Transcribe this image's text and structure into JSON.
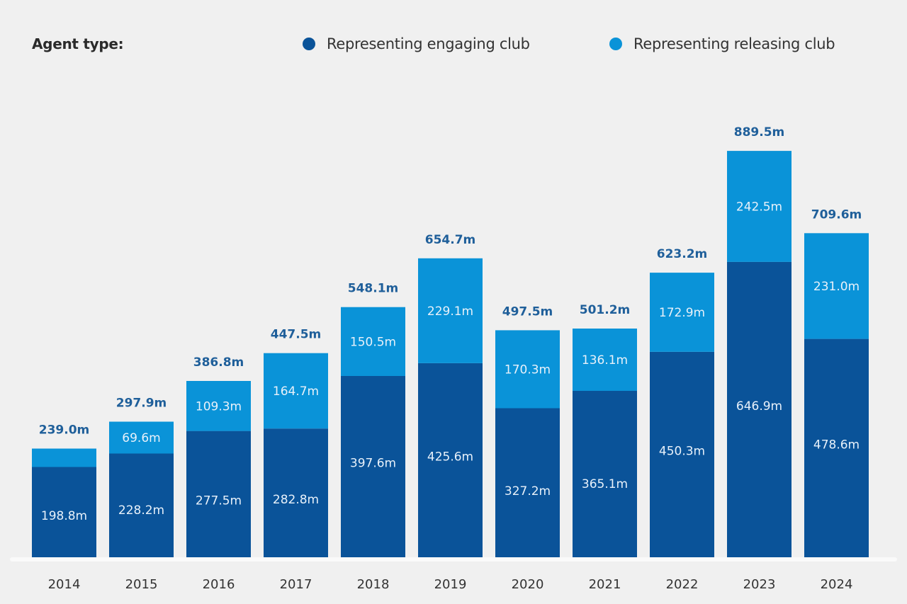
{
  "legend": {
    "title": "Agent type:",
    "items": [
      {
        "label": "Representing engaging club",
        "color": "#0a5399"
      },
      {
        "label": "Representing releasing club",
        "color": "#0a93d8"
      }
    ]
  },
  "chart_data": {
    "type": "bar",
    "stacked": true,
    "title": "",
    "xlabel": "",
    "ylabel": "",
    "unit_suffix": "m",
    "categories": [
      "2014",
      "2015",
      "2016",
      "2017",
      "2018",
      "2019",
      "2020",
      "2021",
      "2022",
      "2023",
      "2024"
    ],
    "series": [
      {
        "name": "Representing engaging club",
        "color": "#0a5399",
        "values": [
          198.8,
          228.2,
          277.5,
          282.8,
          397.6,
          425.6,
          327.2,
          365.1,
          450.3,
          646.9,
          478.6
        ],
        "labels": [
          "198.8m",
          "228.2m",
          "277.5m",
          "282.8m",
          "397.6m",
          "425.6m",
          "327.2m",
          "365.1m",
          "450.3m",
          "646.9m",
          "478.6m"
        ]
      },
      {
        "name": "Representing releasing club",
        "color": "#0a93d8",
        "values": [
          40.2,
          69.6,
          109.3,
          164.7,
          150.5,
          229.1,
          170.3,
          136.1,
          172.9,
          242.5,
          231.0
        ],
        "labels": [
          "",
          "69.6m",
          "109.3m",
          "164.7m",
          "150.5m",
          "229.1m",
          "170.3m",
          "136.1m",
          "172.9m",
          "242.5m",
          "231.0m"
        ]
      }
    ],
    "totals": [
      239.0,
      297.9,
      386.8,
      447.5,
      548.1,
      654.7,
      497.5,
      501.2,
      623.2,
      889.5,
      709.6
    ],
    "total_labels": [
      "239.0m",
      "297.9m",
      "386.8m",
      "447.5m",
      "548.1m",
      "654.7m",
      "497.5m",
      "501.2m",
      "623.2m",
      "889.5m",
      "709.6m"
    ],
    "ylim": [
      0,
      889.5
    ],
    "grid": false,
    "legend_position": "top"
  }
}
